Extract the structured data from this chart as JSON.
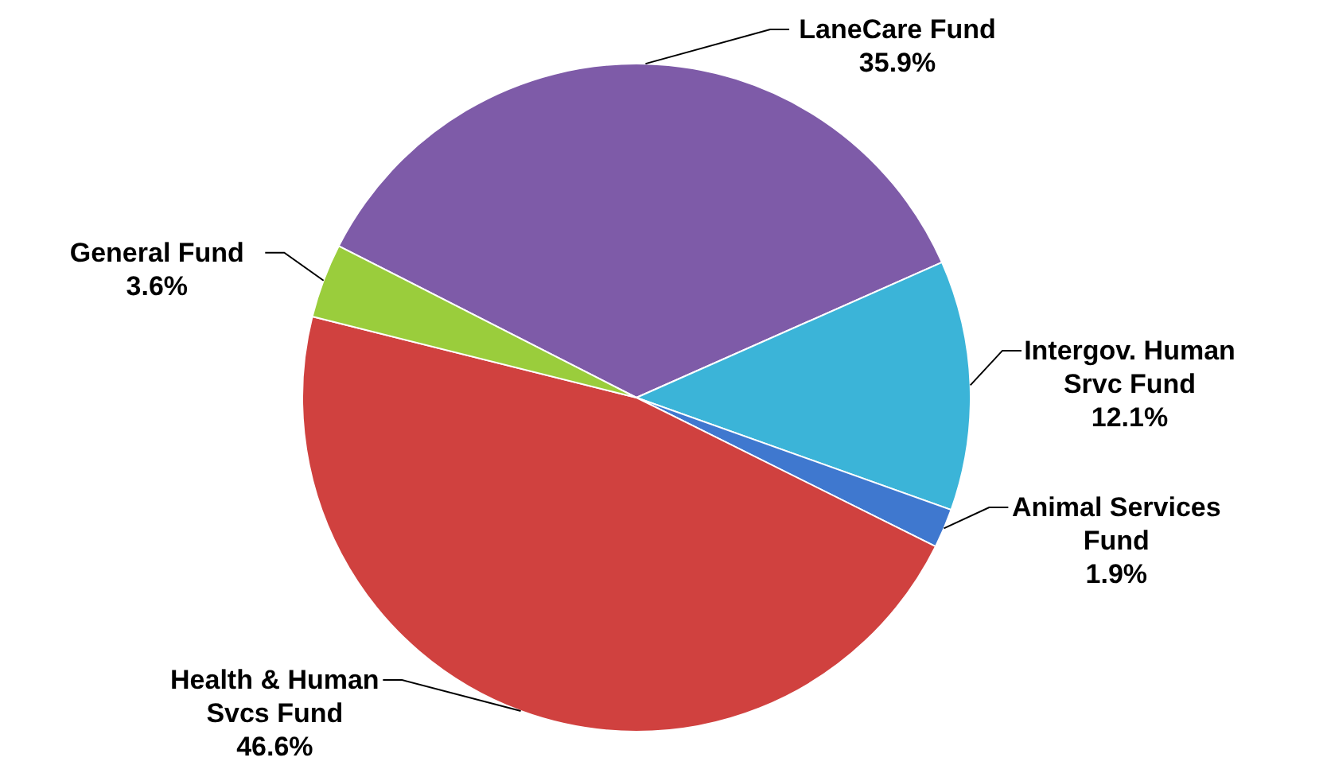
{
  "chart_data": {
    "type": "pie",
    "categories": [
      "LaneCare Fund",
      "Intergov. Human Srvc Fund",
      "Animal Services Fund",
      "Health & Human Svcs Fund",
      "General Fund"
    ],
    "values": [
      35.9,
      12.1,
      1.9,
      46.6,
      3.6
    ],
    "colors": [
      "#7e5ba8",
      "#3bb4d8",
      "#3f78cf",
      "#d0413f",
      "#9acd3c"
    ],
    "value_labels": [
      "35.9%",
      "12.1%",
      "1.9%",
      "46.6%",
      "3.6%"
    ]
  }
}
